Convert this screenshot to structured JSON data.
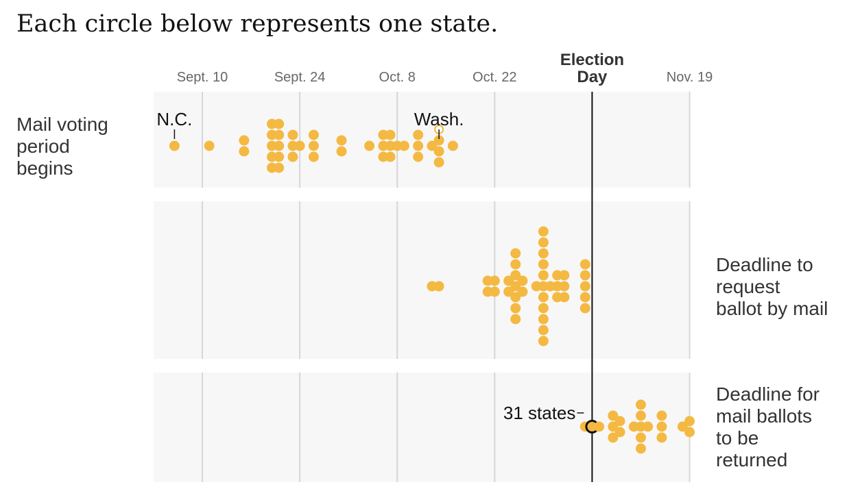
{
  "title": "Each circle below represents one state.",
  "colors": {
    "dot": "#f4b942",
    "panel": "#f7f7f7",
    "grid": "#d6d6d6",
    "election_line": "#121212",
    "highlight_stroke": "#121212"
  },
  "chart_data": {
    "type": "scatter",
    "title": "Each circle below represents one state.",
    "x_axis": {
      "ticks": [
        {
          "label": "Sept. 10",
          "day": 0
        },
        {
          "label": "Sept. 24",
          "day": 14
        },
        {
          "label": "Oct. 8",
          "day": 28
        },
        {
          "label": "Oct. 22",
          "day": 42
        },
        {
          "label": "Nov. 19",
          "day": 70
        }
      ],
      "range": [
        "Sept. 7",
        "Nov. 19"
      ],
      "grid": true
    },
    "election_day": {
      "label_line1": "Election",
      "label_line2": "Day",
      "date": "Nov. 3",
      "day": 56
    },
    "rows": [
      {
        "label_lines": [
          "Mail voting",
          "period",
          "begins"
        ],
        "label_side": "left",
        "columns": [
          {
            "day": -4,
            "count": 1
          },
          {
            "day": 1,
            "count": 1
          },
          {
            "day": 6,
            "count": 2
          },
          {
            "day": 10,
            "count": 5
          },
          {
            "day": 11,
            "count": 5
          },
          {
            "day": 13,
            "count": 3
          },
          {
            "day": 14,
            "count": 1
          },
          {
            "day": 16,
            "count": 3
          },
          {
            "day": 20,
            "count": 2
          },
          {
            "day": 24,
            "count": 1
          },
          {
            "day": 26,
            "count": 3
          },
          {
            "day": 27,
            "count": 3
          },
          {
            "day": 28,
            "count": 1
          },
          {
            "day": 29,
            "count": 1
          },
          {
            "day": 31,
            "count": 3
          },
          {
            "day": 33,
            "count": 1
          },
          {
            "day": 34,
            "count": 4,
            "hollow_top": true
          },
          {
            "day": 36,
            "count": 1
          }
        ],
        "annotations": [
          {
            "text": "N.C.",
            "day": -4
          },
          {
            "text": "Wash.",
            "day": 34
          }
        ]
      },
      {
        "label_lines": [
          "Deadline to",
          "request",
          "ballot by mail"
        ],
        "label_side": "right",
        "columns": [
          {
            "day": 33,
            "count": 1
          },
          {
            "day": 34,
            "count": 1
          },
          {
            "day": 41,
            "count": 2
          },
          {
            "day": 42,
            "count": 2
          },
          {
            "day": 44,
            "count": 2
          },
          {
            "day": 45,
            "count": 7
          },
          {
            "day": 46,
            "count": 2
          },
          {
            "day": 48,
            "count": 1
          },
          {
            "day": 49,
            "count": 11
          },
          {
            "day": 50,
            "count": 1
          },
          {
            "day": 51,
            "count": 3
          },
          {
            "day": 52,
            "count": 3
          },
          {
            "day": 55,
            "count": 5
          }
        ],
        "annotations": []
      },
      {
        "label_lines": [
          "Deadline for",
          "mail ballots",
          "to be",
          "returned"
        ],
        "label_side": "right",
        "columns": [
          {
            "day": 55,
            "count": 1
          },
          {
            "day": 56,
            "count": 1,
            "highlight": true,
            "highlight_value": 31
          },
          {
            "day": 57,
            "count": 1
          },
          {
            "day": 59,
            "count": 3
          },
          {
            "day": 60,
            "count": 2
          },
          {
            "day": 62,
            "count": 1
          },
          {
            "day": 63,
            "count": 5
          },
          {
            "day": 64,
            "count": 1
          },
          {
            "day": 66,
            "count": 3
          },
          {
            "day": 69,
            "count": 1
          },
          {
            "day": 70,
            "count": 2
          }
        ],
        "annotations": [
          {
            "text": "31 states",
            "day": 56
          }
        ]
      }
    ]
  }
}
